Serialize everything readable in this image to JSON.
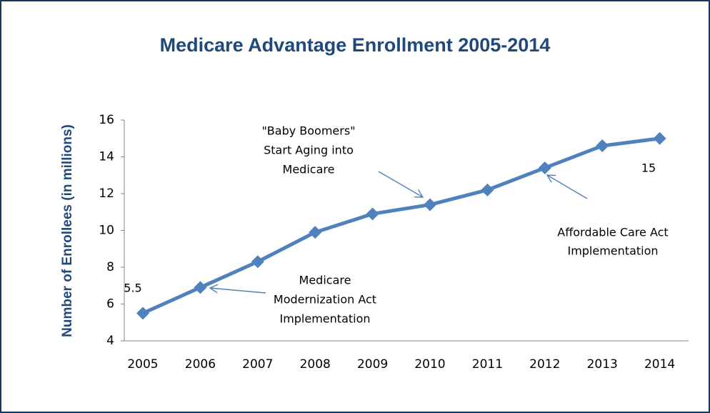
{
  "chart_data": {
    "type": "line",
    "title": "Medicare Advantage Enrollment 2005-2014",
    "y_label": "Number of Enrollees (in millions)",
    "categories": [
      "2005",
      "2006",
      "2007",
      "2008",
      "2009",
      "2010",
      "2011",
      "2012",
      "2013",
      "2014"
    ],
    "values": [
      5.5,
      6.9,
      8.3,
      9.9,
      10.9,
      11.4,
      12.2,
      13.4,
      14.6,
      15
    ],
    "value_labels": [
      "5.5",
      null,
      null,
      null,
      null,
      null,
      null,
      null,
      null,
      "15"
    ],
    "color": "#4f81bd",
    "ylim": [
      4,
      16
    ],
    "yticks": [
      4,
      6,
      8,
      10,
      12,
      14,
      16
    ],
    "grid": false,
    "annotations": [
      {
        "text": [
          "Medicare",
          "Modernization Act",
          "Implementation"
        ]
      },
      {
        "text": [
          "\"Baby Boomers\"",
          "Start Aging into",
          "Medicare"
        ]
      },
      {
        "text": [
          "Affordable Care Act",
          "Implementation"
        ]
      }
    ]
  }
}
